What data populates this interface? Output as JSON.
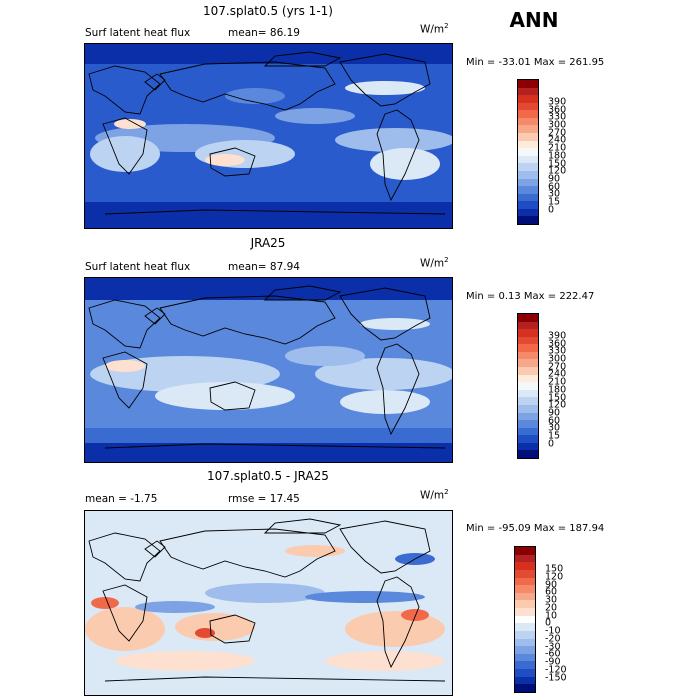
{
  "season": "ANN",
  "units": {
    "base": "W/m",
    "exp": "2"
  },
  "panels": [
    {
      "title": "107.splat0.5 (yrs 1-1)",
      "left_label": "Surf latent heat flux",
      "stat_label": "mean=  86.19",
      "minmax": "Min = -33.01  Max = 261.95",
      "colorbar": {
        "colors": [
          "#8b0000",
          "#b22222",
          "#d7301f",
          "#e34a33",
          "#f06a4a",
          "#f58a6a",
          "#f8a88a",
          "#fbcbb0",
          "#fdebdb",
          "#f4f8fb",
          "#dbe9f7",
          "#bcd4f2",
          "#9ebdec",
          "#7da3e4",
          "#5a88dc",
          "#3a6bd1",
          "#1f4ec4",
          "#0a2fa8",
          "#000e7a"
        ],
        "labels": [
          "390",
          "360",
          "330",
          "300",
          "270",
          "240",
          "210",
          "180",
          "150",
          "120",
          "90",
          "60",
          "30",
          "15",
          "0"
        ]
      }
    },
    {
      "title": "JRA25",
      "left_label": "Surf latent heat flux",
      "stat_label": "mean=  87.94",
      "minmax": "Min =   0.13  Max = 222.47",
      "colorbar": {
        "colors": [
          "#8b0000",
          "#b22222",
          "#d7301f",
          "#e34a33",
          "#f06a4a",
          "#f58a6a",
          "#f8a88a",
          "#fbcbb0",
          "#fdebdb",
          "#f4f8fb",
          "#dbe9f7",
          "#bcd4f2",
          "#9ebdec",
          "#7da3e4",
          "#5a88dc",
          "#3a6bd1",
          "#1f4ec4",
          "#0a2fa8",
          "#000e7a"
        ],
        "labels": [
          "390",
          "360",
          "330",
          "300",
          "270",
          "240",
          "210",
          "180",
          "150",
          "120",
          "90",
          "60",
          "30",
          "15",
          "0"
        ]
      }
    },
    {
      "title": "107.splat0.5 - JRA25",
      "left_label": "mean =   -1.75",
      "stat_label": "rmse =  17.45",
      "minmax": "Min = -95.09  Max = 187.94",
      "colorbar": {
        "colors": [
          "#8b0000",
          "#b22222",
          "#d7301f",
          "#e34a33",
          "#f06a4a",
          "#f58a6a",
          "#f8a88a",
          "#fbcbb0",
          "#fde0cf",
          "#ffffff",
          "#dbe9f7",
          "#bcd4f2",
          "#9ebdec",
          "#7da3e4",
          "#5a88dc",
          "#3a6bd1",
          "#1f4ec4",
          "#0a2fa8",
          "#000e7a"
        ],
        "labels": [
          "150",
          "120",
          "90",
          "60",
          "30",
          "20",
          "10",
          "0",
          "-10",
          "-20",
          "-30",
          "-60",
          "-90",
          "-120",
          "-150"
        ]
      }
    }
  ]
}
